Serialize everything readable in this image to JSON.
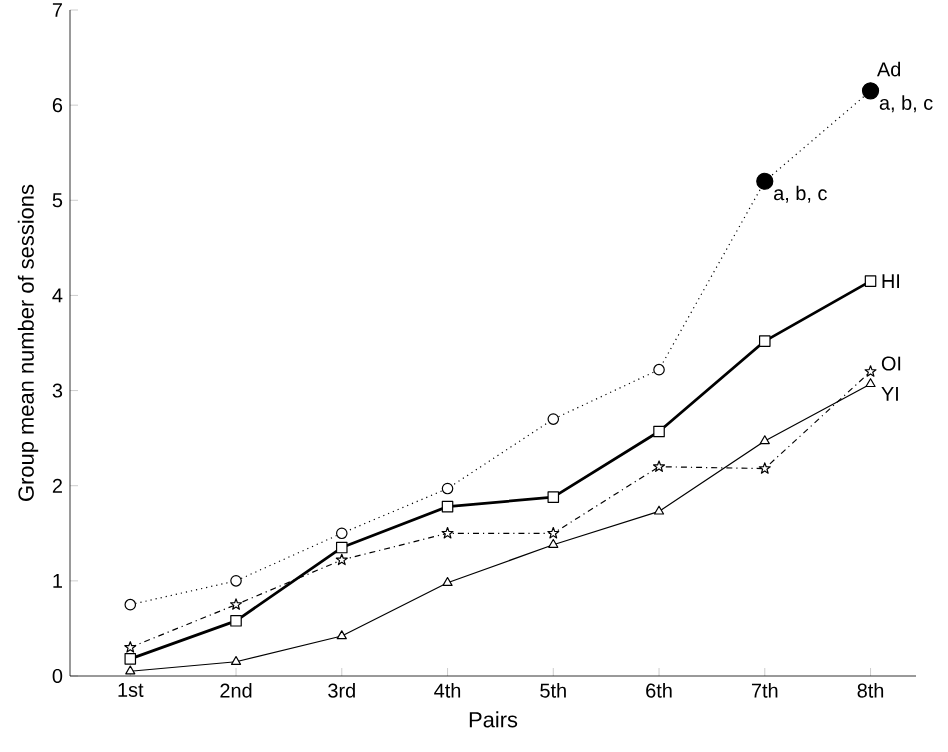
{
  "chart_data": {
    "type": "line",
    "xlabel": "Pairs",
    "ylabel": "Group mean number of sessions",
    "categories": [
      "1st",
      "2nd",
      "3rd",
      "4th",
      "5th",
      "6th",
      "7th",
      "8th"
    ],
    "series": [
      {
        "name": "Ad",
        "color": "#000000",
        "marker": "circle",
        "line_style": "dotted",
        "values": [
          0.75,
          1.0,
          1.5,
          1.97,
          2.7,
          3.22,
          5.2,
          6.15
        ],
        "colors": [
          "#ffffff",
          "#ffffff",
          "#ffffff",
          "#ffffff",
          "#ffffff",
          "#ffffff",
          "#000000",
          "#000000"
        ]
      },
      {
        "name": "HI",
        "color": "#000000",
        "marker": "square",
        "line_style": "solid",
        "values": [
          0.18,
          0.58,
          1.35,
          1.78,
          1.88,
          2.57,
          3.52,
          4.15
        ]
      },
      {
        "name": "OI",
        "color": "#000000",
        "marker": "star",
        "line_style": "dashdot",
        "values": [
          0.3,
          0.75,
          1.22,
          1.5,
          1.5,
          2.2,
          2.18,
          3.2
        ]
      },
      {
        "name": "YI",
        "color": "#000000",
        "marker": "triangle",
        "line_style": "solid",
        "values": [
          0.05,
          0.15,
          0.42,
          0.98,
          1.38,
          1.73,
          2.47,
          3.07
        ]
      }
    ],
    "ylim": [
      0,
      7
    ],
    "yticks": [
      0,
      1,
      2,
      3,
      4,
      5,
      6,
      7
    ],
    "grid": false,
    "annotations": [
      {
        "text": "a, b, c",
        "x": "7th",
        "y": 5.2
      },
      {
        "text": "a, b, c",
        "x": "8th",
        "y": 6.15
      }
    ]
  }
}
